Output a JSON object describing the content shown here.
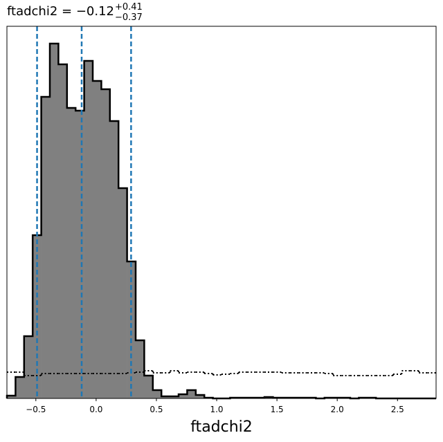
{
  "chart_data": {
    "type": "histogram",
    "title": {
      "text": "ftadchi2 = −0.12",
      "sup": "+0.41",
      "sub": "−0.37"
    },
    "xlabel": "ftadchi2",
    "bins": [
      -0.74,
      -0.6688,
      -0.5976,
      -0.5264,
      -0.4552,
      -0.384,
      -0.3128,
      -0.2416,
      -0.1704,
      -0.0992,
      -0.028,
      0.0432,
      0.1144,
      0.1856,
      0.2568,
      0.328,
      0.3992,
      0.4704,
      0.5416,
      0.6128,
      0.684,
      0.7552,
      0.8264,
      0.8976,
      0.9688,
      1.04,
      1.1112,
      1.1824,
      1.2536,
      1.3248,
      1.396,
      1.4672,
      1.5384,
      1.6096,
      1.6808,
      1.752,
      1.8232,
      1.8944,
      1.9656,
      2.0368,
      2.108,
      2.1792,
      2.2504,
      2.3216,
      2.3928,
      2.464,
      2.5352,
      2.6064,
      2.6776,
      2.7488,
      2.82
    ],
    "series": [
      {
        "color": "#808080",
        "edgecolor": "#000000",
        "style": "filled",
        "values": [
          4,
          31,
          90,
          236,
          436,
          513,
          483,
          420,
          416,
          488,
          459,
          447,
          401,
          304,
          198,
          84,
          33,
          12,
          3,
          3,
          6,
          12,
          5,
          1,
          0,
          0,
          1,
          1,
          1,
          1,
          2,
          1,
          1,
          1,
          1,
          1,
          0,
          1,
          1,
          1,
          0,
          1,
          1,
          0,
          0,
          0,
          0,
          0,
          0,
          0
        ]
      },
      {
        "color": "#000000",
        "style": "dotted",
        "values": [
          38,
          38,
          33,
          33,
          36,
          36,
          36,
          36,
          36,
          36,
          36,
          36,
          36,
          36,
          37,
          38,
          40,
          37,
          37,
          40,
          37,
          38,
          38,
          36,
          34,
          35,
          36,
          38,
          38,
          38,
          38,
          38,
          37,
          37,
          37,
          37,
          37,
          36,
          33,
          33,
          33,
          33,
          33,
          33,
          33,
          35,
          40,
          40,
          37,
          37
        ]
      }
    ],
    "vlines": {
      "color": "#1f77b4",
      "values": [
        -0.49,
        -0.12,
        0.29
      ]
    },
    "xlim": [
      -0.74,
      2.82
    ],
    "ylim": [
      0,
      538
    ],
    "xticks": [
      {
        "value": -0.5,
        "label": "−0.5"
      },
      {
        "value": 0,
        "label": "0.0"
      },
      {
        "value": 0.5,
        "label": "0.5"
      },
      {
        "value": 1,
        "label": "1.0"
      },
      {
        "value": 1.5,
        "label": "1.5"
      },
      {
        "value": 2,
        "label": "2.0"
      },
      {
        "value": 2.5,
        "label": "2.5"
      }
    ]
  }
}
